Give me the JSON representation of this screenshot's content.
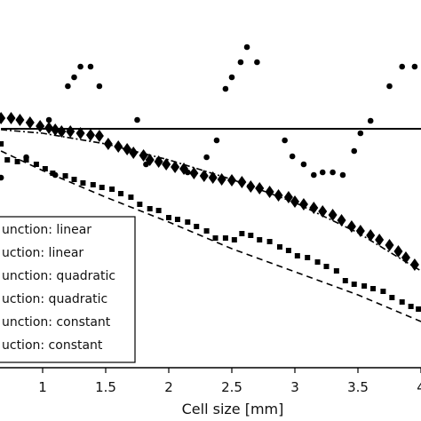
{
  "chart_data": {
    "type": "scatter",
    "xlabel": "Cell size [mm]",
    "ylabel": "",
    "x_ticks": [
      1,
      1.5,
      2,
      2.5,
      3,
      3.5,
      4
    ],
    "x_tick_labels": [
      "1",
      "1.5",
      "2",
      "2.5",
      "3",
      "3.5",
      "4"
    ],
    "x_range_visible": [
      0.67,
      4.0
    ],
    "grid": false,
    "legend_position": "bottom-left",
    "legend_entries": [
      "unction: linear",
      "uction: linear",
      "unction: quadratic",
      "uction: quadratic",
      "unction: constant",
      "uction: constant"
    ],
    "series": [
      {
        "marker": "circle",
        "points": [
          [
            0.67,
            200
          ],
          [
            0.87,
            177
          ],
          [
            1.05,
            135
          ],
          [
            1.1,
            197
          ],
          [
            1.2,
            97
          ],
          [
            1.25,
            87
          ],
          [
            1.3,
            75
          ],
          [
            1.38,
            75
          ],
          [
            1.45,
            97
          ],
          [
            1.75,
            135
          ],
          [
            1.82,
            185
          ],
          [
            1.92,
            180
          ],
          [
            2.15,
            194
          ],
          [
            2.3,
            177
          ],
          [
            2.38,
            158
          ],
          [
            2.45,
            100
          ],
          [
            2.5,
            87
          ],
          [
            2.57,
            70
          ],
          [
            2.62,
            53
          ],
          [
            2.7,
            70
          ],
          [
            2.92,
            158
          ],
          [
            2.98,
            176
          ],
          [
            3.07,
            185
          ],
          [
            3.15,
            197
          ],
          [
            3.22,
            194
          ],
          [
            3.3,
            194
          ],
          [
            3.38,
            197
          ],
          [
            3.47,
            170
          ],
          [
            3.52,
            150
          ],
          [
            3.6,
            136
          ],
          [
            3.75,
            97
          ],
          [
            3.85,
            75
          ],
          [
            3.95,
            75
          ]
        ]
      },
      {
        "marker": "diamond",
        "points": [
          [
            0.67,
            133
          ],
          [
            0.75,
            133
          ],
          [
            0.82,
            135
          ],
          [
            0.9,
            138
          ],
          [
            0.98,
            142
          ],
          [
            1.05,
            144
          ],
          [
            1.1,
            146
          ],
          [
            1.15,
            148
          ],
          [
            1.22,
            148
          ],
          [
            1.3,
            150
          ],
          [
            1.38,
            152
          ],
          [
            1.45,
            153
          ],
          [
            1.52,
            162
          ],
          [
            1.6,
            165
          ],
          [
            1.67,
            168
          ],
          [
            1.72,
            172
          ],
          [
            1.8,
            175
          ],
          [
            1.85,
            180
          ],
          [
            1.92,
            182
          ],
          [
            1.98,
            185
          ],
          [
            2.05,
            188
          ],
          [
            2.12,
            190
          ],
          [
            2.2,
            195
          ],
          [
            2.28,
            198
          ],
          [
            2.35,
            200
          ],
          [
            2.42,
            202
          ],
          [
            2.5,
            203
          ],
          [
            2.58,
            205
          ],
          [
            2.65,
            210
          ],
          [
            2.72,
            212
          ],
          [
            2.8,
            216
          ],
          [
            2.87,
            220
          ],
          [
            2.95,
            222
          ],
          [
            3.0,
            227
          ],
          [
            3.07,
            230
          ],
          [
            3.15,
            234
          ],
          [
            3.22,
            238
          ],
          [
            3.3,
            242
          ],
          [
            3.37,
            248
          ],
          [
            3.45,
            255
          ],
          [
            3.52,
            260
          ],
          [
            3.6,
            265
          ],
          [
            3.67,
            270
          ],
          [
            3.75,
            276
          ],
          [
            3.82,
            283
          ],
          [
            3.88,
            290
          ],
          [
            3.95,
            298
          ]
        ]
      },
      {
        "marker": "square",
        "points": [
          [
            0.67,
            162
          ],
          [
            0.72,
            180
          ],
          [
            0.8,
            182
          ],
          [
            0.87,
            180
          ],
          [
            0.95,
            185
          ],
          [
            1.02,
            190
          ],
          [
            1.08,
            195
          ],
          [
            1.18,
            198
          ],
          [
            1.25,
            202
          ],
          [
            1.32,
            206
          ],
          [
            1.4,
            208
          ],
          [
            1.47,
            211
          ],
          [
            1.55,
            213
          ],
          [
            1.62,
            218
          ],
          [
            1.7,
            222
          ],
          [
            1.77,
            230
          ],
          [
            1.85,
            235
          ],
          [
            1.92,
            237
          ],
          [
            2.0,
            245
          ],
          [
            2.07,
            247
          ],
          [
            2.15,
            250
          ],
          [
            2.22,
            255
          ],
          [
            2.3,
            260
          ],
          [
            2.37,
            268
          ],
          [
            2.45,
            268
          ],
          [
            2.52,
            270
          ],
          [
            2.58,
            263
          ],
          [
            2.65,
            265
          ],
          [
            2.72,
            270
          ],
          [
            2.8,
            272
          ],
          [
            2.88,
            278
          ],
          [
            2.95,
            282
          ],
          [
            3.02,
            288
          ],
          [
            3.1,
            290
          ],
          [
            3.18,
            295
          ],
          [
            3.25,
            300
          ],
          [
            3.33,
            305
          ],
          [
            3.4,
            316
          ],
          [
            3.47,
            320
          ],
          [
            3.55,
            322
          ],
          [
            3.62,
            325
          ],
          [
            3.7,
            328
          ],
          [
            3.77,
            335
          ],
          [
            3.85,
            340
          ],
          [
            3.92,
            345
          ],
          [
            3.98,
            348
          ]
        ]
      },
      {
        "line": "solid",
        "points": [
          [
            0.67,
            145
          ],
          [
            4.0,
            145
          ]
        ]
      },
      {
        "line": "dashdot",
        "points": [
          [
            0.67,
            146
          ],
          [
            1.0,
            150
          ],
          [
            1.5,
            162
          ],
          [
            2.0,
            180
          ],
          [
            2.5,
            202
          ],
          [
            3.0,
            228
          ],
          [
            3.5,
            262
          ],
          [
            3.8,
            288
          ],
          [
            4.0,
            305
          ]
        ]
      },
      {
        "line": "dashed",
        "points": [
          [
            0.67,
            170
          ],
          [
            1.0,
            192
          ],
          [
            1.5,
            222
          ],
          [
            2.0,
            250
          ],
          [
            2.5,
            280
          ],
          [
            3.0,
            306
          ],
          [
            3.5,
            332
          ],
          [
            4.0,
            362
          ]
        ]
      }
    ]
  }
}
